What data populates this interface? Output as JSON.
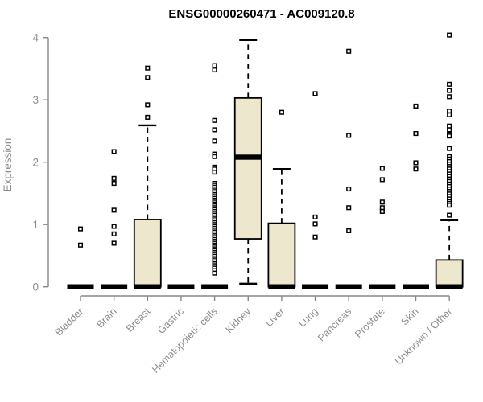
{
  "chart_data": {
    "type": "boxplot",
    "title": "ENSG00000260471 - AC009120.8",
    "ylabel": "Expression",
    "xlabel": "",
    "ylim": [
      0,
      4
    ],
    "yticks": [
      0,
      1,
      2,
      3,
      4
    ],
    "grid": false,
    "legend": "none",
    "categories": [
      "Bladder",
      "Brain",
      "Breast",
      "Gastric",
      "Hematopoietic cells",
      "Kidney",
      "Liver",
      "Lung",
      "Pancreas",
      "Prostate",
      "Skin",
      "Unknown / Other"
    ],
    "series": [
      {
        "category": "Bladder",
        "q1": 0,
        "median": 0,
        "q3": 0,
        "whisker_low": 0,
        "whisker_high": 0,
        "outliers": [
          0.93,
          0.67
        ]
      },
      {
        "category": "Brain",
        "q1": 0,
        "median": 0,
        "q3": 0,
        "whisker_low": 0,
        "whisker_high": 0,
        "outliers": [
          2.17,
          1.74,
          1.66,
          1.23,
          0.97,
          0.85,
          0.7
        ]
      },
      {
        "category": "Breast",
        "q1": 0,
        "median": 0,
        "q3": 1.08,
        "whisker_low": 0,
        "whisker_high": 2.59,
        "outliers": [
          3.51,
          3.36,
          2.92,
          2.72
        ]
      },
      {
        "category": "Gastric",
        "q1": 0,
        "median": 0,
        "q3": 0,
        "whisker_low": 0,
        "whisker_high": 0,
        "outliers": []
      },
      {
        "category": "Hematopoietic cells",
        "q1": 0,
        "median": 0,
        "q3": 0,
        "whisker_low": 0,
        "whisker_high": 0,
        "outliers": [
          3.55,
          3.48,
          2.67,
          2.52,
          2.34,
          2.13,
          2.09,
          1.92,
          1.89,
          1.84,
          1.66,
          1.63,
          1.6,
          1.57,
          1.54,
          1.51,
          1.48,
          1.45,
          1.42,
          1.39,
          1.36,
          1.33,
          1.3,
          1.27,
          1.24,
          1.21,
          1.18,
          1.15,
          1.12,
          1.09,
          1.06,
          1.03,
          1.0,
          0.97,
          0.94,
          0.91,
          0.88,
          0.85,
          0.82,
          0.79,
          0.76,
          0.73,
          0.7,
          0.67,
          0.64,
          0.61,
          0.58,
          0.55,
          0.52,
          0.49,
          0.46,
          0.43,
          0.4,
          0.37,
          0.34,
          0.3,
          0.26,
          0.22
        ]
      },
      {
        "category": "Kidney",
        "q1": 0.77,
        "median": 2.08,
        "q3": 3.03,
        "whisker_low": 0.05,
        "whisker_high": 3.96,
        "outliers": []
      },
      {
        "category": "Liver",
        "q1": 0,
        "median": 0,
        "q3": 1.02,
        "whisker_low": 0,
        "whisker_high": 1.89,
        "outliers": [
          2.8
        ]
      },
      {
        "category": "Lung",
        "q1": 0,
        "median": 0,
        "q3": 0,
        "whisker_low": 0,
        "whisker_high": 0,
        "outliers": [
          3.1,
          1.12,
          1.01,
          0.8
        ]
      },
      {
        "category": "Pancreas",
        "q1": 0,
        "median": 0,
        "q3": 0,
        "whisker_low": 0,
        "whisker_high": 0,
        "outliers": [
          3.78,
          2.43,
          1.57,
          1.27,
          0.9
        ]
      },
      {
        "category": "Prostate",
        "q1": 0,
        "median": 0,
        "q3": 0,
        "whisker_low": 0,
        "whisker_high": 0,
        "outliers": [
          1.9,
          1.72,
          1.36,
          1.27,
          1.21
        ]
      },
      {
        "category": "Skin",
        "q1": 0,
        "median": 0,
        "q3": 0,
        "whisker_low": 0,
        "whisker_high": 0,
        "outliers": [
          2.9,
          2.46,
          1.99,
          1.89
        ]
      },
      {
        "category": "Unknown / Other",
        "q1": 0,
        "median": 0,
        "q3": 0.43,
        "whisker_low": 0,
        "whisker_high": 1.07,
        "outliers": [
          4.04,
          3.25,
          3.15,
          3.05,
          2.82,
          2.76,
          2.58,
          2.52,
          2.45,
          2.42,
          2.22,
          2.09,
          2.05,
          2.01,
          1.97,
          1.93,
          1.89,
          1.85,
          1.81,
          1.77,
          1.73,
          1.69,
          1.65,
          1.61,
          1.57,
          1.53,
          1.49,
          1.45,
          1.41,
          1.37,
          1.34,
          1.31,
          1.15
        ]
      }
    ],
    "colors": {
      "box_fill": "#ECE7CD",
      "box_stroke": "#000000",
      "median": "#000000",
      "whisker": "#000000",
      "outlier_fill": "#FFFFFF",
      "outlier_stroke": "#000000",
      "axis": "#878787",
      "tick_label": "#8C8C8C",
      "title": "#000000",
      "background": "#FFFFFF"
    }
  }
}
